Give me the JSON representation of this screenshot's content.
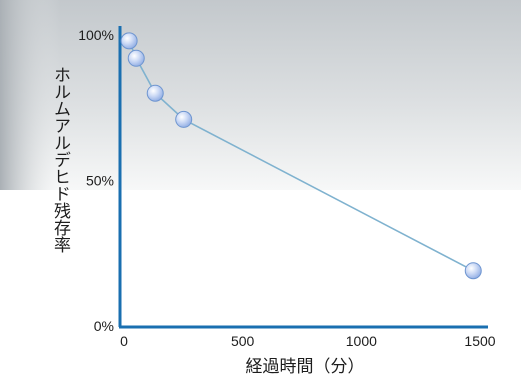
{
  "chart_data": {
    "type": "line",
    "title": "",
    "xlabel": "経過時間（分）",
    "ylabel": "ホルムアルデヒド残存率",
    "xlim": [
      0,
      1500
    ],
    "ylim": [
      0,
      100
    ],
    "x_ticks": [
      "0",
      "500",
      "1000",
      "1500"
    ],
    "y_ticks": [
      "0%",
      "50%",
      "100%"
    ],
    "x": [
      30,
      60,
      140,
      260,
      1480
    ],
    "y": [
      98,
      92,
      80,
      71,
      19
    ],
    "grid": false,
    "legend": "none",
    "colors": {
      "axis": "#1a6fb0",
      "line": "#7fb2cf",
      "marker": "#a9c4ee",
      "marker_edge": "#6e95d0",
      "marker_highlight": "#ffffff"
    }
  }
}
